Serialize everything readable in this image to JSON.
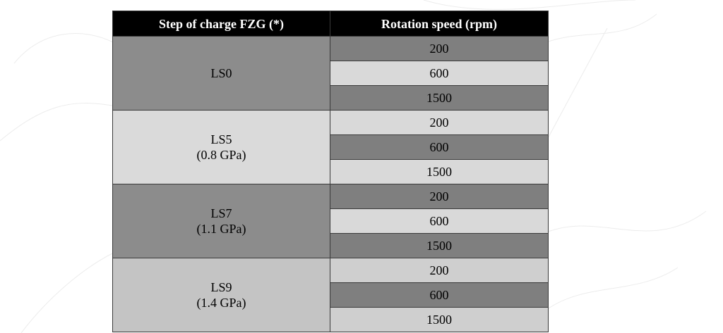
{
  "table": {
    "headers": {
      "step": "Step of charge FZG (*)",
      "speed": "Rotation speed (rpm)"
    },
    "groups": [
      {
        "name": "LS0",
        "sub": "",
        "speeds": [
          "200",
          "600",
          "1500"
        ]
      },
      {
        "name": "LS5",
        "sub": "(0.8 GPa)",
        "speeds": [
          "200",
          "600",
          "1500"
        ]
      },
      {
        "name": "LS7",
        "sub": "(1.1 GPa)",
        "speeds": [
          "200",
          "600",
          "1500"
        ]
      },
      {
        "name": "LS9",
        "sub": "(1.4 GPa)",
        "speeds": [
          "200",
          "600",
          "1500"
        ]
      }
    ]
  },
  "colors": {
    "header_bg": "#000000",
    "header_text": "#ffffff",
    "stage_dark": "#8c8c8c",
    "stage_light": "#dadada",
    "stage_mid": "#c4c4c4",
    "cell_dark": "#7f7f7f",
    "cell_light": "#d9d9d9"
  }
}
